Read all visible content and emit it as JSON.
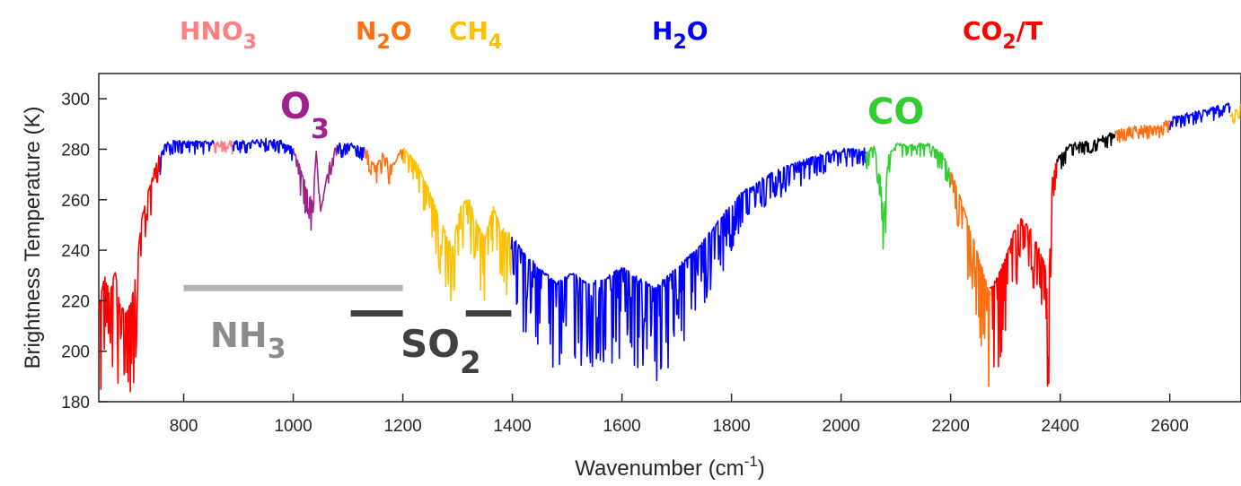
{
  "chart_data": {
    "type": "line",
    "title": "",
    "xlabel": "Wavenumber (cm",
    "xlabel_sup": "-1",
    "xlabel_end": ")",
    "ylabel": "Brightness Temperature (K)",
    "xlim": [
      645,
      2730
    ],
    "ylim": [
      180,
      310
    ],
    "xticks": [
      "800",
      "1000",
      "1200",
      "1400",
      "1600",
      "1800",
      "2000",
      "2200",
      "2400",
      "2600"
    ],
    "yticks": [
      "180",
      "200",
      "220",
      "240",
      "260",
      "280",
      "300"
    ],
    "grid": false,
    "legend": "none",
    "segments": [
      {
        "color": "#ff0000",
        "points": [
          [
            645,
            216
          ],
          [
            655,
            229
          ],
          [
            665,
            222
          ],
          [
            675,
            231
          ],
          [
            685,
            217
          ],
          [
            695,
            214
          ],
          [
            705,
            219
          ],
          [
            715,
            232
          ],
          [
            722,
            250
          ],
          [
            730,
            258
          ],
          [
            740,
            266
          ],
          [
            750,
            274
          ],
          [
            757,
            277
          ]
        ]
      },
      {
        "color": "#0000ff",
        "points": [
          [
            757,
            276
          ],
          [
            765,
            281
          ],
          [
            780,
            282
          ],
          [
            800,
            282
          ],
          [
            830,
            282
          ],
          [
            855,
            282
          ]
        ]
      },
      {
        "color": "#ff8080",
        "points": [
          [
            855,
            282
          ],
          [
            870,
            282
          ],
          [
            890,
            282
          ]
        ]
      },
      {
        "color": "#0000ff",
        "points": [
          [
            890,
            282
          ],
          [
            920,
            282
          ],
          [
            950,
            283
          ],
          [
            980,
            282
          ],
          [
            1000,
            279
          ]
        ]
      },
      {
        "color": "#a0208c",
        "points": [
          [
            1000,
            279
          ],
          [
            1012,
            272
          ],
          [
            1024,
            264
          ],
          [
            1035,
            258
          ],
          [
            1042,
            278
          ],
          [
            1050,
            255
          ],
          [
            1058,
            264
          ],
          [
            1068,
            276
          ],
          [
            1080,
            281
          ]
        ]
      },
      {
        "color": "#0000ff",
        "points": [
          [
            1080,
            281
          ],
          [
            1095,
            281
          ],
          [
            1110,
            281
          ],
          [
            1130,
            280
          ]
        ]
      },
      {
        "color": "#ff7010",
        "points": [
          [
            1130,
            280
          ],
          [
            1150,
            272
          ],
          [
            1165,
            278
          ],
          [
            1180,
            272
          ],
          [
            1200,
            280
          ]
        ]
      },
      {
        "color": "#ffc000",
        "points": [
          [
            1200,
            280
          ],
          [
            1225,
            274
          ],
          [
            1250,
            262
          ],
          [
            1270,
            250
          ],
          [
            1290,
            240
          ],
          [
            1305,
            256
          ],
          [
            1320,
            260
          ],
          [
            1335,
            250
          ],
          [
            1350,
            244
          ],
          [
            1365,
            256
          ],
          [
            1380,
            248
          ],
          [
            1398,
            245
          ]
        ]
      },
      {
        "color": "#0000ff",
        "points": [
          [
            1398,
            245
          ],
          [
            1420,
            238
          ],
          [
            1450,
            232
          ],
          [
            1480,
            226
          ],
          [
            1510,
            230
          ],
          [
            1540,
            226
          ],
          [
            1570,
            228
          ],
          [
            1600,
            232
          ],
          [
            1630,
            228
          ],
          [
            1660,
            224
          ],
          [
            1700,
            232
          ],
          [
            1740,
            240
          ],
          [
            1780,
            252
          ],
          [
            1820,
            262
          ],
          [
            1860,
            268
          ],
          [
            1900,
            272
          ],
          [
            1940,
            275
          ],
          [
            1980,
            278
          ],
          [
            2010,
            279
          ],
          [
            2045,
            279
          ]
        ]
      },
      {
        "color": "#32cd32",
        "points": [
          [
            2045,
            278
          ],
          [
            2060,
            280
          ],
          [
            2070,
            272
          ],
          [
            2078,
            252
          ],
          [
            2086,
            276
          ],
          [
            2100,
            281
          ],
          [
            2130,
            281
          ],
          [
            2160,
            281
          ],
          [
            2185,
            277
          ],
          [
            2200,
            270
          ]
        ]
      },
      {
        "color": "#ff7010",
        "points": [
          [
            2200,
            270
          ],
          [
            2210,
            265
          ],
          [
            2222,
            257
          ],
          [
            2235,
            248
          ],
          [
            2250,
            238
          ],
          [
            2262,
            228
          ],
          [
            2272,
            222
          ]
        ]
      },
      {
        "color": "#ff0000",
        "points": [
          [
            2272,
            224
          ],
          [
            2285,
            228
          ],
          [
            2300,
            236
          ],
          [
            2315,
            246
          ],
          [
            2330,
            252
          ],
          [
            2345,
            248
          ],
          [
            2360,
            240
          ],
          [
            2372,
            233
          ],
          [
            2378,
            218
          ],
          [
            2386,
            268
          ],
          [
            2394,
            276
          ]
        ]
      },
      {
        "color": "#000000",
        "points": [
          [
            2394,
            276
          ],
          [
            2420,
            281
          ],
          [
            2450,
            282
          ],
          [
            2480,
            284
          ],
          [
            2500,
            286
          ]
        ]
      },
      {
        "color": "#ff7010",
        "points": [
          [
            2500,
            286
          ],
          [
            2530,
            288
          ],
          [
            2560,
            288
          ],
          [
            2580,
            288
          ],
          [
            2600,
            291
          ]
        ]
      },
      {
        "color": "#0000ff",
        "points": [
          [
            2600,
            291
          ],
          [
            2630,
            293
          ],
          [
            2660,
            294
          ],
          [
            2690,
            296
          ],
          [
            2710,
            297
          ]
        ]
      },
      {
        "color": "#ffc000",
        "points": [
          [
            2710,
            293
          ],
          [
            2720,
            294
          ],
          [
            2730,
            297
          ]
        ]
      }
    ],
    "bars": [
      {
        "name": "NH3",
        "x": [
          800,
          1200
        ],
        "y": 225,
        "color": "#b3b3b3"
      },
      {
        "name": "SO2",
        "x": [
          1105,
          1200
        ],
        "y": 215,
        "color": "#404040"
      },
      {
        "name": "SO2",
        "x": [
          1315,
          1398
        ],
        "y": 215,
        "color": "#404040"
      }
    ],
    "labels": [
      {
        "main": "HNO",
        "sub": "3",
        "color": "#ff8080"
      },
      {
        "main": "N",
        "sub": "2",
        "after": "O",
        "color": "#ff7010"
      },
      {
        "main": "CH",
        "sub": "4",
        "color": "#ffc000"
      },
      {
        "main": "H",
        "sub": "2",
        "after": "O",
        "color": "#0000ff"
      },
      {
        "main": "CO",
        "sub": "2",
        "after": "/T",
        "color": "#ff0000"
      },
      {
        "main": "O",
        "sub": "3",
        "color": "#a0208c"
      },
      {
        "main": "CO",
        "sub": "",
        "color": "#32cd32"
      },
      {
        "main": "NH",
        "sub": "3",
        "color": "#8c8c8c"
      },
      {
        "main": "SO",
        "sub": "2",
        "color": "#404040"
      }
    ]
  }
}
